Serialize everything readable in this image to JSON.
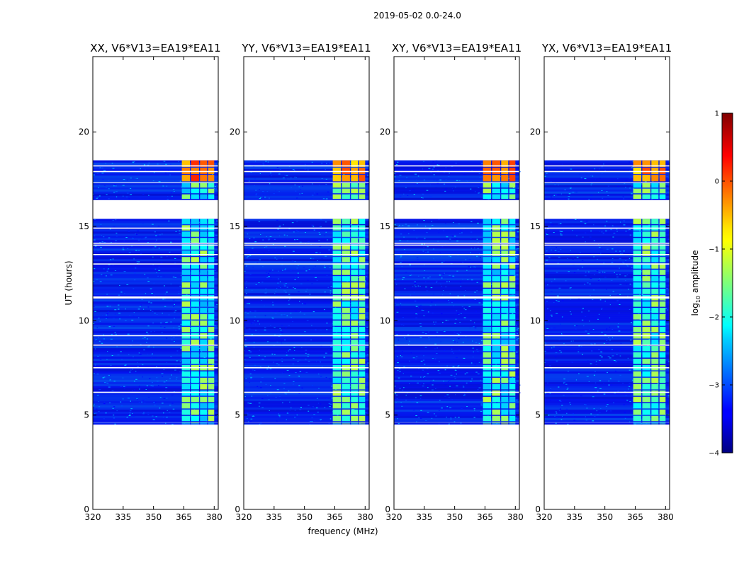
{
  "chart_data": {
    "type": "heatmap",
    "suptitle": "2019-05-02 0.0-24.0",
    "xlabel": "frequency (MHz)",
    "ylabel": "UT (hours)",
    "xlim": [
      320,
      382
    ],
    "ylim": [
      0,
      24
    ],
    "xticks": [
      320,
      335,
      350,
      365,
      380
    ],
    "yticks": [
      0,
      5,
      10,
      15,
      20
    ],
    "panels": [
      {
        "title": "XX, V6*V13=EA19*EA11",
        "polarization": "XX"
      },
      {
        "title": "YY, V6*V13=EA19*EA11",
        "polarization": "YY"
      },
      {
        "title": "XY, V6*V13=EA19*EA11",
        "polarization": "XY"
      },
      {
        "title": "YX, V6*V13=EA19*EA11",
        "polarization": "YX"
      }
    ],
    "data_segments_hours": [
      [
        4.5,
        4.6
      ],
      [
        4.62,
        15.4
      ],
      [
        16.4,
        17.3
      ],
      [
        17.35,
        18.5
      ]
    ],
    "empty_rows_hours": [
      6.2,
      7.5,
      8.7,
      9.2,
      11.2,
      11.25,
      13.0,
      13.5,
      14.0,
      14.1,
      14.9,
      17.9,
      18.2
    ],
    "rfi_band_mhz": [
      364,
      380
    ],
    "rfi_columns_mhz": [
      [
        364,
        368
      ],
      [
        368.5,
        372.5
      ],
      [
        373,
        376.5
      ],
      [
        377,
        380
      ]
    ],
    "colorbar": {
      "label": "log10 amplitude",
      "label_base": "log",
      "label_sub": "10",
      "label_rest": " amplitude",
      "range": [
        -4,
        1
      ],
      "ticks": [
        -4,
        -3,
        -2,
        -1,
        0,
        1
      ],
      "tick_labels": [
        "−4",
        "−3",
        "−2",
        "−1",
        "0",
        "1"
      ],
      "colormap": "jet"
    }
  }
}
